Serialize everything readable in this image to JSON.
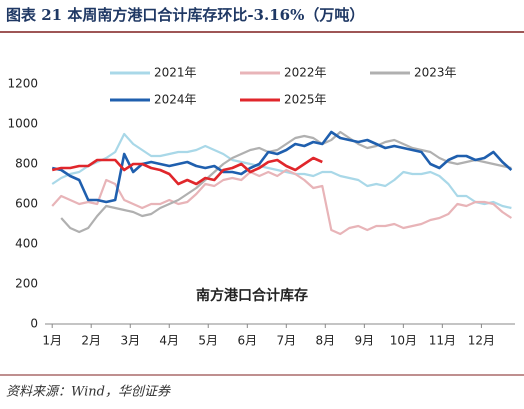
{
  "chart_data": {
    "type": "line",
    "title": "图表 21   本周南方港口合计库存环比-3.16%（万吨）",
    "annotation": "南方港口合计库存",
    "source": "资料来源：Wind，华创证券",
    "x": [
      1,
      2,
      3,
      4,
      5,
      6,
      7,
      8,
      9,
      10,
      11,
      12,
      13,
      14,
      15,
      16,
      17,
      18,
      19,
      20,
      21,
      22,
      23,
      24,
      25,
      26,
      27,
      28,
      29,
      30,
      31,
      32,
      33,
      34,
      35,
      36,
      37,
      38,
      39,
      40,
      41,
      42,
      43,
      44,
      45,
      46,
      47,
      48,
      49,
      50,
      51,
      52
    ],
    "xlim": [
      0.2,
      52.4
    ],
    "xticks": [
      {
        "value": 1,
        "label": "1月"
      },
      {
        "value": 5.33,
        "label": "2月"
      },
      {
        "value": 9.67,
        "label": "3月"
      },
      {
        "value": 14,
        "label": "4月"
      },
      {
        "value": 18.33,
        "label": "5月"
      },
      {
        "value": 22.67,
        "label": "6月"
      },
      {
        "value": 27,
        "label": "7月"
      },
      {
        "value": 31.33,
        "label": "8月"
      },
      {
        "value": 35.67,
        "label": "9月"
      },
      {
        "value": 40,
        "label": "10月"
      },
      {
        "value": 44.33,
        "label": "11月"
      },
      {
        "value": 48.67,
        "label": "12月"
      }
    ],
    "ylim": [
      0,
      1200
    ],
    "yticks": [
      0,
      200,
      400,
      600,
      800,
      1000,
      1200
    ],
    "series": [
      {
        "name": "2021年",
        "color": "#a9d8e8",
        "values": [
          700,
          730,
          750,
          760,
          790,
          810,
          830,
          860,
          950,
          900,
          870,
          840,
          840,
          850,
          860,
          860,
          870,
          890,
          870,
          850,
          820,
          810,
          800,
          790,
          780,
          770,
          760,
          750,
          750,
          740,
          760,
          760,
          740,
          730,
          720,
          690,
          700,
          690,
          720,
          760,
          750,
          750,
          760,
          740,
          700,
          640,
          640,
          610,
          600,
          610,
          590,
          580
        ]
      },
      {
        "name": "2022年",
        "color": "#e8b4b8",
        "values": [
          590,
          640,
          620,
          600,
          610,
          600,
          720,
          700,
          620,
          600,
          580,
          600,
          600,
          620,
          600,
          610,
          650,
          700,
          690,
          720,
          730,
          720,
          760,
          740,
          760,
          740,
          770,
          750,
          720,
          680,
          690,
          470,
          450,
          480,
          490,
          470,
          490,
          490,
          500,
          480,
          490,
          500,
          520,
          530,
          550,
          600,
          590,
          610,
          610,
          600,
          560,
          530
        ]
      },
      {
        "name": "2023年",
        "color": "#b0b0b0",
        "values": [
          null,
          530,
          480,
          460,
          480,
          540,
          590,
          580,
          570,
          560,
          540,
          550,
          580,
          600,
          620,
          650,
          680,
          720,
          760,
          800,
          830,
          850,
          870,
          880,
          860,
          870,
          900,
          930,
          940,
          930,
          900,
          920,
          960,
          930,
          900,
          880,
          890,
          910,
          920,
          900,
          880,
          870,
          860,
          830,
          810,
          800,
          810,
          820,
          810,
          800,
          790,
          780
        ]
      },
      {
        "name": "2024年",
        "color": "#1f5fae",
        "values": [
          780,
          770,
          740,
          720,
          620,
          620,
          610,
          620,
          850,
          760,
          800,
          810,
          800,
          790,
          800,
          810,
          790,
          780,
          790,
          760,
          760,
          750,
          780,
          800,
          860,
          850,
          870,
          900,
          890,
          910,
          900,
          960,
          930,
          920,
          910,
          920,
          900,
          880,
          890,
          880,
          870,
          860,
          800,
          780,
          820,
          840,
          840,
          820,
          830,
          860,
          810,
          770
        ]
      },
      {
        "name": "2025年",
        "color": "#e0262b",
        "values": [
          770,
          780,
          780,
          790,
          790,
          820,
          820,
          820,
          770,
          800,
          800,
          780,
          770,
          750,
          700,
          720,
          700,
          730,
          720,
          770,
          780,
          800,
          760,
          780,
          810,
          820,
          790,
          770,
          800,
          830,
          810,
          null,
          null,
          null,
          null,
          null,
          null,
          null,
          null,
          null,
          null,
          null,
          null,
          null,
          null,
          null,
          null,
          null,
          null,
          null,
          null,
          null
        ]
      }
    ]
  }
}
